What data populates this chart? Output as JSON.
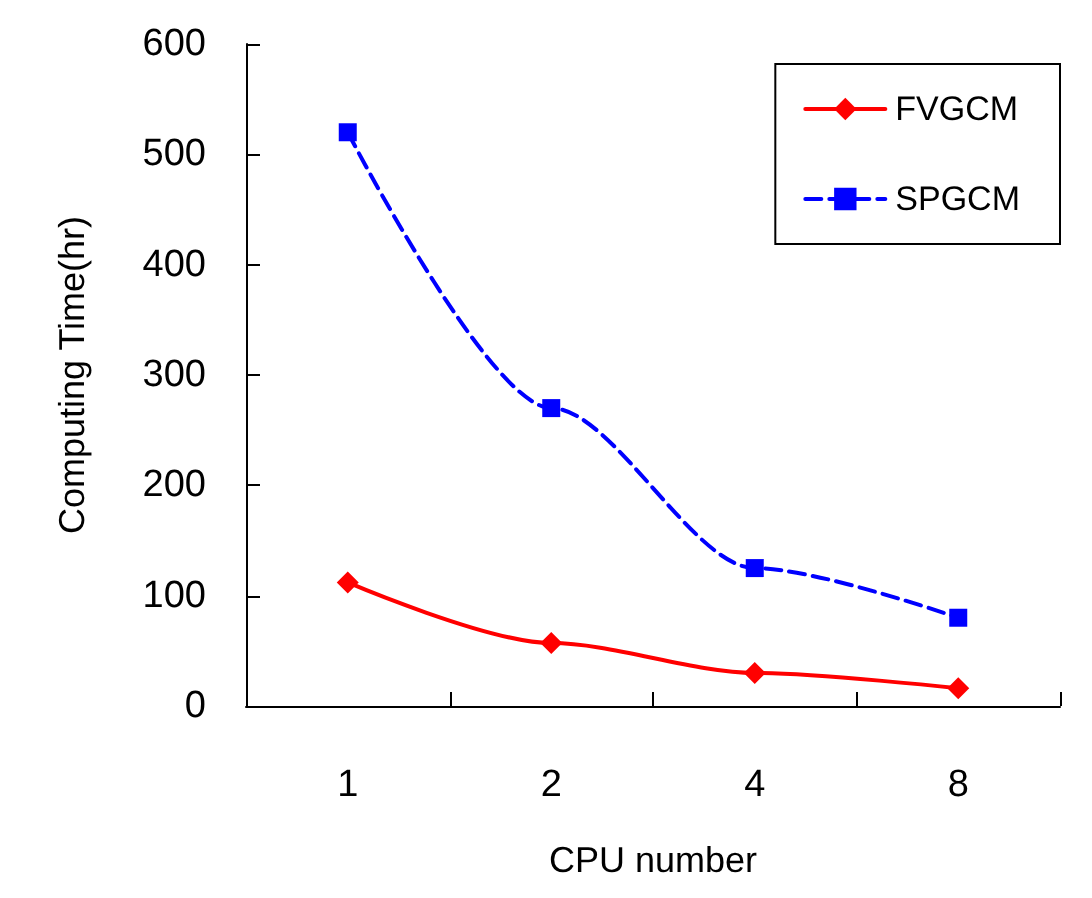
{
  "chart_data": {
    "type": "line",
    "xlabel": "CPU number",
    "ylabel": "Computing Time(hr)",
    "categories": [
      "1",
      "2",
      "4",
      "8"
    ],
    "series": [
      {
        "name": "FVGCM",
        "color": "#ff0000",
        "values": [
          112,
          57,
          30,
          16
        ],
        "marker": "diamond",
        "line_style": "solid"
      },
      {
        "name": "SPGCM",
        "color": "#0000ff",
        "values": [
          520,
          270,
          125,
          80
        ],
        "marker": "square",
        "line_style": "dashed"
      }
    ],
    "ylim": [
      0,
      600
    ],
    "yticks": [
      0,
      100,
      200,
      300,
      400,
      500,
      600
    ],
    "grid": false,
    "legend": "top right"
  }
}
